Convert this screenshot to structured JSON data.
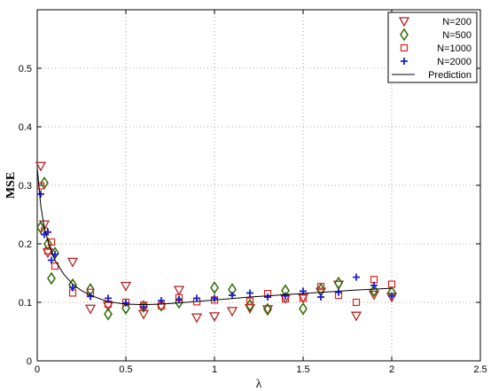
{
  "chart_data": {
    "type": "scatter",
    "title": "",
    "xlabel": "λ",
    "ylabel": "MSE",
    "xlim": [
      0,
      2.5
    ],
    "ylim": [
      0,
      0.6
    ],
    "xticks": [
      "0",
      "0.5",
      "1",
      "1.5",
      "2",
      "2.5"
    ],
    "yticks": [
      "0",
      "0.1",
      "0.2",
      "0.3",
      "0.4",
      "0.5"
    ],
    "grid": true,
    "legend_position": "top-right",
    "series": [
      {
        "name": "N=200",
        "marker": "triangle-down",
        "color": "#b22222",
        "x": [
          0.02,
          0.04,
          0.06,
          0.2,
          0.3,
          0.4,
          0.5,
          0.6,
          0.8,
          0.9,
          1.0,
          1.1,
          1.2,
          1.3,
          1.4,
          1.5,
          1.6,
          1.7,
          1.8,
          1.9,
          2.0
        ],
        "y": [
          0.333,
          0.233,
          0.185,
          0.169,
          0.089,
          0.094,
          0.128,
          0.08,
          0.121,
          0.074,
          0.076,
          0.085,
          0.09,
          0.088,
          0.107,
          0.108,
          0.118,
          0.13,
          0.077,
          0.113,
          0.109
        ]
      },
      {
        "name": "N=500",
        "marker": "diamond",
        "color": "#2e6b00",
        "x": [
          0.02,
          0.04,
          0.06,
          0.08,
          0.1,
          0.2,
          0.3,
          0.4,
          0.5,
          0.6,
          0.7,
          0.8,
          1.0,
          1.1,
          1.2,
          1.3,
          1.4,
          1.5,
          1.6,
          1.7,
          1.9,
          2.0
        ],
        "y": [
          0.228,
          0.304,
          0.2,
          0.141,
          0.184,
          0.13,
          0.122,
          0.08,
          0.09,
          0.093,
          0.095,
          0.1,
          0.125,
          0.122,
          0.095,
          0.088,
          0.12,
          0.089,
          0.122,
          0.133,
          0.12,
          0.117
        ]
      },
      {
        "name": "N=1000",
        "marker": "square",
        "color": "#e0201e",
        "x": [
          0.02,
          0.04,
          0.06,
          0.08,
          0.1,
          0.2,
          0.3,
          0.4,
          0.5,
          0.6,
          0.7,
          0.8,
          0.9,
          1.0,
          1.2,
          1.3,
          1.4,
          1.5,
          1.6,
          1.7,
          1.8,
          1.9,
          2.0
        ],
        "y": [
          0.299,
          0.222,
          0.188,
          0.203,
          0.162,
          0.116,
          0.117,
          0.097,
          0.1,
          0.095,
          0.094,
          0.108,
          0.101,
          0.104,
          0.102,
          0.115,
          0.106,
          0.107,
          0.127,
          0.112,
          0.1,
          0.139,
          0.131
        ]
      },
      {
        "name": "N=2000",
        "marker": "plus",
        "color": "#1f1fd0",
        "x": [
          0.02,
          0.04,
          0.06,
          0.08,
          0.1,
          0.2,
          0.3,
          0.4,
          0.5,
          0.6,
          0.7,
          0.8,
          0.9,
          1.0,
          1.1,
          1.2,
          1.3,
          1.4,
          1.5,
          1.6,
          1.7,
          1.8,
          1.9,
          2.0
        ],
        "y": [
          0.285,
          0.216,
          0.22,
          0.172,
          0.182,
          0.125,
          0.11,
          0.107,
          0.099,
          0.092,
          0.103,
          0.105,
          0.107,
          0.107,
          0.112,
          0.116,
          0.109,
          0.111,
          0.119,
          0.109,
          0.117,
          0.143,
          0.129,
          0.111
        ]
      },
      {
        "name": "Prediction",
        "marker": "line",
        "color": "#000000",
        "x": [
          0.0,
          0.02,
          0.04,
          0.06,
          0.08,
          0.1,
          0.15,
          0.2,
          0.25,
          0.3,
          0.4,
          0.5,
          0.6,
          0.7,
          0.8,
          1.0,
          1.2,
          1.4,
          1.6,
          1.8,
          2.0
        ],
        "y": [
          0.33,
          0.265,
          0.228,
          0.205,
          0.188,
          0.172,
          0.148,
          0.131,
          0.12,
          0.112,
          0.101,
          0.097,
          0.096,
          0.097,
          0.099,
          0.104,
          0.109,
          0.113,
          0.117,
          0.121,
          0.124
        ]
      }
    ]
  }
}
